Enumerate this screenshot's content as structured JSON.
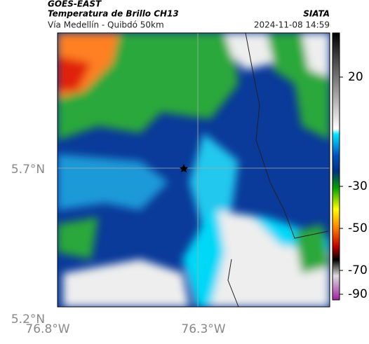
{
  "header": {
    "product": "GOES-EAST",
    "title": "Temperatura de Brillo CH13",
    "subtitle": "Vía Medellín - Quibdó 50km",
    "source": "SIATA",
    "datetime": "2024-11-08 14:59"
  },
  "map": {
    "lat_labels": [
      "5.7°N",
      "5.2°N"
    ],
    "lon_labels": [
      "76.8°W",
      "76.3°W"
    ]
  },
  "colorbar": {
    "ticks": [
      20,
      -30,
      -50,
      -70,
      -90
    ]
  }
}
